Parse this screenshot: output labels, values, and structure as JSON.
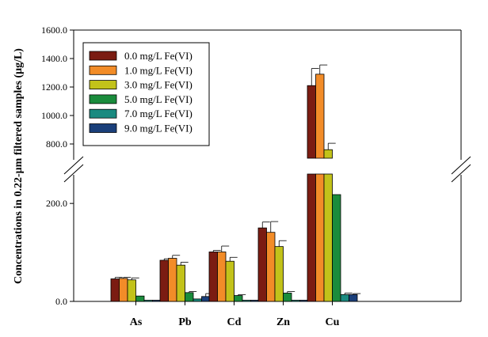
{
  "chart_data": {
    "type": "bar",
    "title": "",
    "xlabel": "",
    "ylabel": "Concentrations in 0.22-μm filtered samples (μg/L)",
    "categories": [
      "As",
      "Pb",
      "Cd",
      "Zn",
      "Cu"
    ],
    "axis_break": {
      "lower_range": [
        0,
        260
      ],
      "upper_range": [
        700,
        1600
      ]
    },
    "y_ticks": [
      {
        "value": 0,
        "label": "0.0"
      },
      {
        "value": 200,
        "label": "200.0"
      },
      {
        "value": 800,
        "label": "800.0"
      },
      {
        "value": 1000,
        "label": "1000.0"
      },
      {
        "value": 1200,
        "label": "1200.0"
      },
      {
        "value": 1400,
        "label": "1400.0"
      },
      {
        "value": 1600,
        "label": "1600.0"
      }
    ],
    "legend_position": "top-left",
    "series": [
      {
        "name": "0.0 mg/L Fe(VI)",
        "color": "#7b1c12",
        "values": [
          46,
          84,
          101,
          150,
          1210
        ],
        "errors": [
          3,
          3,
          3,
          12,
          120
        ]
      },
      {
        "name": "1.0 mg/L Fe(VI)",
        "color": "#f28c28",
        "values": [
          47,
          88,
          101,
          141,
          1290
        ],
        "errors": [
          2,
          6,
          12,
          22,
          65
        ]
      },
      {
        "name": "3.0 mg/L Fe(VI)",
        "color": "#c2c21a",
        "values": [
          44,
          74,
          82,
          112,
          760
        ],
        "errors": [
          4,
          6,
          8,
          12,
          45
        ]
      },
      {
        "name": "5.0 mg/L Fe(VI)",
        "color": "#1a8c3c",
        "values": [
          11,
          18,
          12,
          17,
          218
        ],
        "errors": [
          0,
          2,
          2,
          3,
          0
        ]
      },
      {
        "name": "7.0 mg/L Fe(VI)",
        "color": "#1a8a80",
        "values": [
          2,
          5,
          0,
          0,
          14
        ],
        "errors": [
          0,
          0,
          0,
          0,
          3
        ]
      },
      {
        "name": "9.0 mg/L Fe(VI)",
        "color": "#1a3f7a",
        "values": [
          2,
          10,
          0,
          0,
          14
        ],
        "errors": [
          0,
          6,
          0,
          0,
          2
        ]
      }
    ]
  }
}
